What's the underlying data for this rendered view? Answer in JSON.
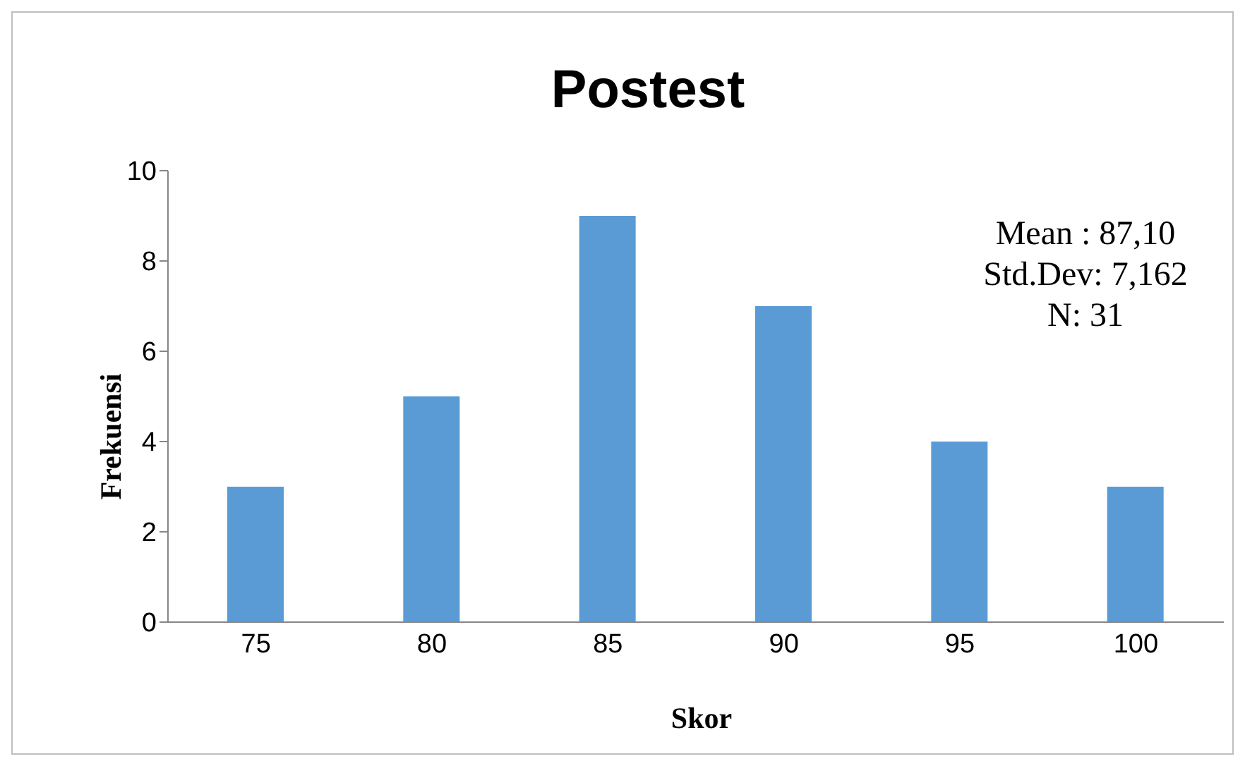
{
  "chart_data": {
    "type": "bar",
    "title": "Postest",
    "xlabel": "Skor",
    "ylabel": "Frekuensi",
    "categories": [
      "75",
      "80",
      "85",
      "90",
      "95",
      "100"
    ],
    "values": [
      3,
      5,
      9,
      7,
      4,
      3
    ],
    "color": "#5b9bd5",
    "ylim": [
      0,
      10
    ],
    "yticks": [
      0,
      2,
      4,
      6,
      8,
      10
    ],
    "annotations": [
      "Mean : 87,10",
      "Std.Dev: 7,162",
      "N: 31"
    ]
  }
}
